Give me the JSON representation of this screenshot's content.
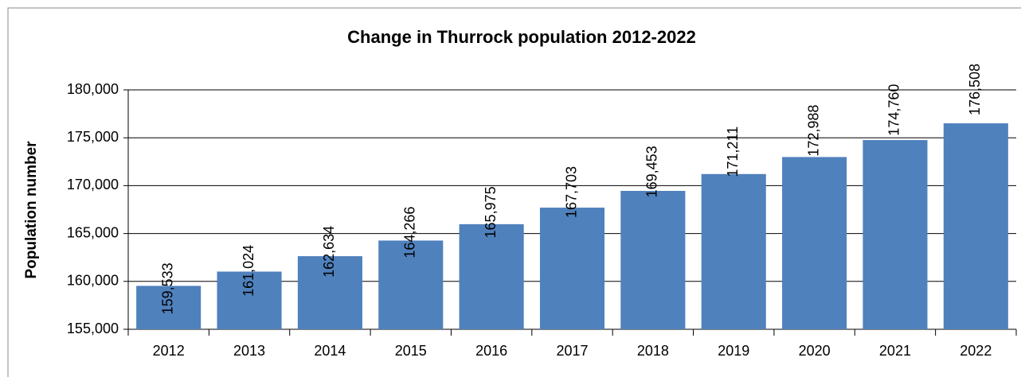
{
  "chart_data": {
    "type": "bar",
    "title": "Change in Thurrock population 2012-2022",
    "y_label": "Population number",
    "categories": [
      "2012",
      "2013",
      "2014",
      "2015",
      "2016",
      "2017",
      "2018",
      "2019",
      "2020",
      "2021",
      "2022"
    ],
    "values": [
      159533,
      161024,
      162634,
      164266,
      165975,
      167703,
      169453,
      171211,
      172988,
      174760,
      176508
    ],
    "value_labels": [
      "159,533",
      "161,024",
      "162,634",
      "164,266",
      "165,975",
      "167,703",
      "169,453",
      "171,211",
      "172,988",
      "174,760",
      "176,508"
    ],
    "color": "#4f81bd",
    "ylim": [
      155000,
      180000
    ],
    "yticks": [
      {
        "value": 155000,
        "label": "155,000"
      },
      {
        "value": 160000,
        "label": "160,000"
      },
      {
        "value": 165000,
        "label": "165,000"
      },
      {
        "value": 170000,
        "label": "170,000"
      },
      {
        "value": 175000,
        "label": "175,000"
      },
      {
        "value": 180000,
        "label": "180,000"
      }
    ],
    "grid": true
  }
}
